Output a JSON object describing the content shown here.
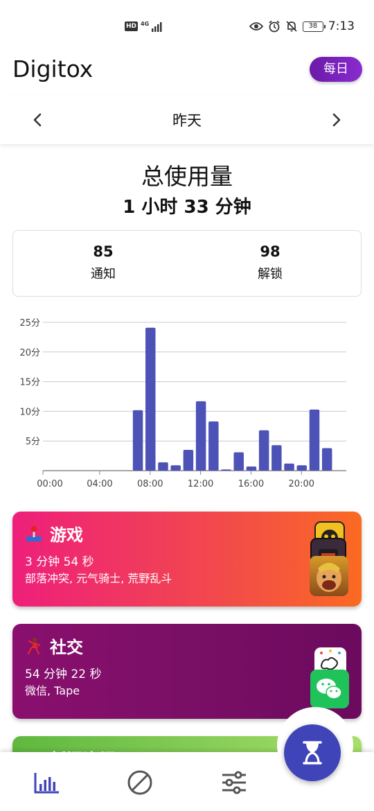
{
  "status_bar": {
    "hd": "HD",
    "network": "4G",
    "battery": "38",
    "time": "7:13"
  },
  "header": {
    "app_title": "Digitox",
    "period_button": "每日"
  },
  "date_nav": {
    "label": "昨天",
    "prev_icon": "chevron-left-icon",
    "next_icon": "chevron-right-icon"
  },
  "summary": {
    "title": "总使用量",
    "value": "1 小时 33 分钟",
    "notifications": {
      "value": "85",
      "label": "通知"
    },
    "unlocks": {
      "value": "98",
      "label": "解锁"
    }
  },
  "chart_data": {
    "type": "bar",
    "x": [
      "00:00",
      "01:00",
      "02:00",
      "03:00",
      "04:00",
      "05:00",
      "06:00",
      "07:00",
      "08:00",
      "09:00",
      "10:00",
      "11:00",
      "12:00",
      "13:00",
      "14:00",
      "15:00",
      "16:00",
      "17:00",
      "18:00",
      "19:00",
      "20:00",
      "21:00",
      "22:00",
      "23:00"
    ],
    "values": [
      0,
      0,
      0,
      0,
      0,
      0,
      0,
      10.2,
      24.1,
      1.4,
      0.9,
      3.5,
      11.7,
      8.3,
      0.2,
      3.1,
      0.7,
      6.8,
      4.3,
      1.2,
      0.9,
      10.3,
      3.8,
      0
    ],
    "x_tick_labels": [
      "00:00",
      "04:00",
      "08:00",
      "12:00",
      "16:00",
      "20:00"
    ],
    "y_tick_labels": [
      "5分",
      "10分",
      "15分",
      "20分",
      "25分"
    ],
    "y_ticks": [
      5,
      10,
      15,
      20,
      25
    ],
    "ylim": [
      0,
      25
    ],
    "unit": "分",
    "grid": true,
    "bar_color": "#4d52b7"
  },
  "categories": [
    {
      "name": "游戏",
      "icon": "joystick-icon",
      "time": "3 分钟 54 秒",
      "apps": "部落冲突, 元气骑士, 荒野乱斗"
    },
    {
      "name": "社交",
      "icon": "dancer-icon",
      "time": "54 分钟 22 秒",
      "apps": "微信, Tape"
    },
    {
      "name": "新闻资讯",
      "icon": "newspaper-icon"
    }
  ],
  "bottom_nav": {
    "items": [
      "bar-chart-icon",
      "block-icon",
      "sliders-icon"
    ],
    "fab": "hourglass-icon"
  },
  "colors": {
    "accent": "#4d52b7",
    "games_gradient": [
      "#ee1f7b",
      "#fb6a22"
    ],
    "social_gradient": [
      "#8a0f6e",
      "#6b0a5e"
    ],
    "news_gradient": [
      "#5fb83f",
      "#a6de6a"
    ],
    "period_button": "#7a22bf"
  }
}
